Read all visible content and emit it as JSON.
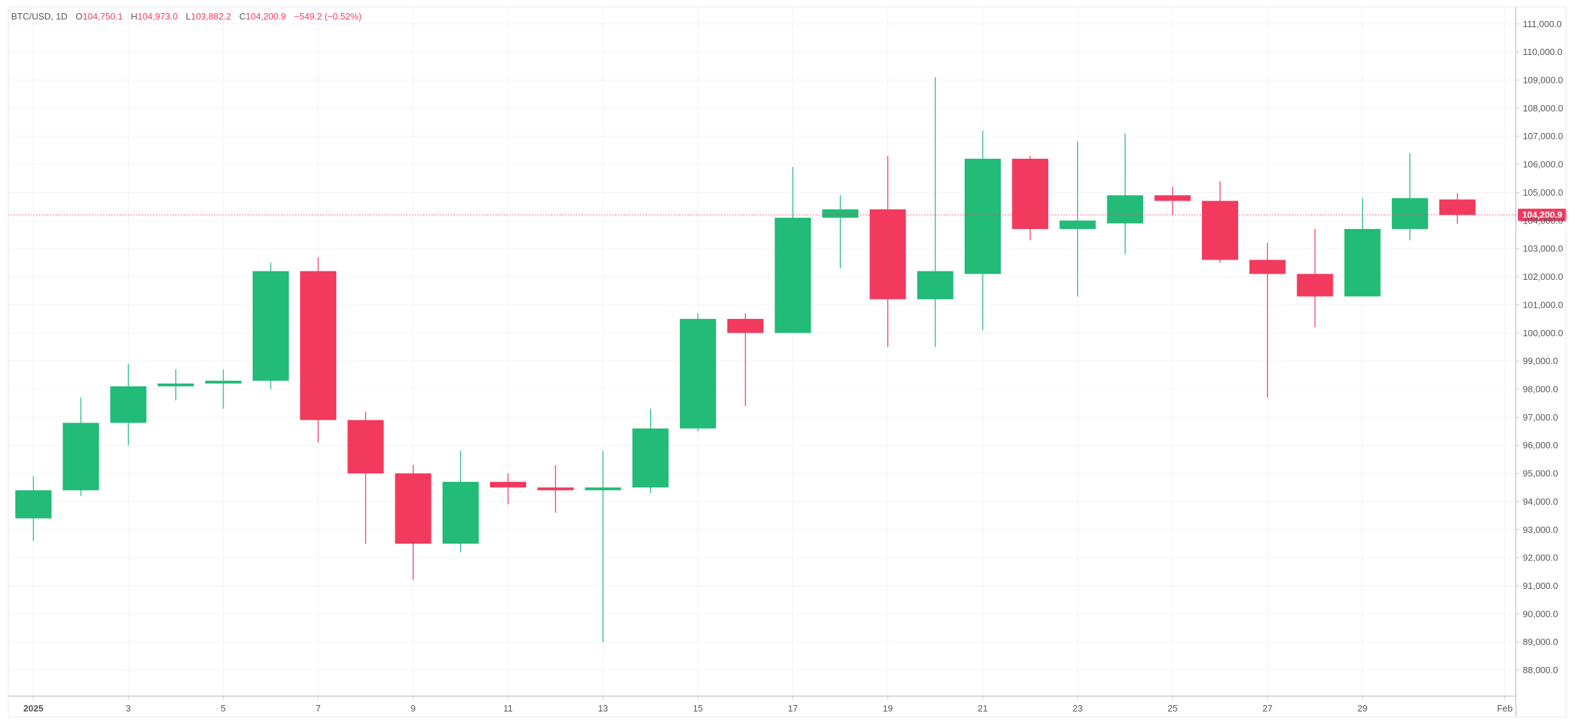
{
  "legend": {
    "symbol": "BTC/USD, 1D",
    "open_label": "O",
    "open_value": "104,750.1",
    "high_label": "H",
    "high_value": "104,973.0",
    "low_label": "L",
    "low_value": "103,882.2",
    "close_label": "C",
    "close_value": "104,200.9",
    "change": "−549.2 (−0.52%)"
  },
  "current_price_label": "104,200.9",
  "colors": {
    "up": "#22bb77",
    "down": "#f23a5e",
    "grid": "#f0f3f8",
    "axis_border": "#c8ccd4",
    "text": "#555555"
  },
  "chart_data": {
    "type": "candlestick",
    "symbol": "BTC/USD",
    "interval": "1D",
    "ylim": [
      87000,
      111500
    ],
    "y_ticks": [
      88000,
      89000,
      90000,
      91000,
      92000,
      93000,
      94000,
      95000,
      96000,
      97000,
      98000,
      99000,
      100000,
      101000,
      102000,
      103000,
      104000,
      105000,
      106000,
      107000,
      108000,
      109000,
      110000,
      111000
    ],
    "y_tick_labels": [
      "88,000.0",
      "89,000.0",
      "90,000.0",
      "91,000.0",
      "92,000.0",
      "93,000.0",
      "94,000.0",
      "95,000.0",
      "96,000.0",
      "97,000.0",
      "98,000.0",
      "99,000.0",
      "100,000.0",
      "101,000.0",
      "102,000.0",
      "103,000.0",
      "104,000.0",
      "105,000.0",
      "106,000.0",
      "107,000.0",
      "108,000.0",
      "109,000.0",
      "110,000.0",
      "111,000.0"
    ],
    "x_tick_labels": [
      {
        "day": 1,
        "label": "2025"
      },
      {
        "day": 3,
        "label": "3"
      },
      {
        "day": 5,
        "label": "5"
      },
      {
        "day": 7,
        "label": "7"
      },
      {
        "day": 9,
        "label": "9"
      },
      {
        "day": 11,
        "label": "11"
      },
      {
        "day": 13,
        "label": "13"
      },
      {
        "day": 15,
        "label": "15"
      },
      {
        "day": 17,
        "label": "17"
      },
      {
        "day": 19,
        "label": "19"
      },
      {
        "day": 21,
        "label": "21"
      },
      {
        "day": 23,
        "label": "23"
      },
      {
        "day": 25,
        "label": "25"
      },
      {
        "day": 27,
        "label": "27"
      },
      {
        "day": 29,
        "label": "29"
      },
      {
        "day": 32,
        "label": "Feb"
      }
    ],
    "grid": true,
    "current_price": 104200.9,
    "candles": [
      {
        "date": "2025-01-01",
        "day": 1,
        "open": 93400,
        "high": 94900,
        "low": 92600,
        "close": 94400
      },
      {
        "date": "2025-01-02",
        "day": 2,
        "open": 94400,
        "high": 97700,
        "low": 94200,
        "close": 96800
      },
      {
        "date": "2025-01-03",
        "day": 3,
        "open": 96800,
        "high": 98900,
        "low": 96000,
        "close": 98100
      },
      {
        "date": "2025-01-04",
        "day": 4,
        "open": 98100,
        "high": 98700,
        "low": 97600,
        "close": 98200
      },
      {
        "date": "2025-01-05",
        "day": 5,
        "open": 98200,
        "high": 98700,
        "low": 97300,
        "close": 98300
      },
      {
        "date": "2025-01-06",
        "day": 6,
        "open": 98300,
        "high": 102500,
        "low": 98000,
        "close": 102200
      },
      {
        "date": "2025-01-07",
        "day": 7,
        "open": 102200,
        "high": 102700,
        "low": 96100,
        "close": 96900
      },
      {
        "date": "2025-01-08",
        "day": 8,
        "open": 96900,
        "high": 97200,
        "low": 92500,
        "close": 95000
      },
      {
        "date": "2025-01-09",
        "day": 9,
        "open": 95000,
        "high": 95300,
        "low": 91200,
        "close": 92500
      },
      {
        "date": "2025-01-10",
        "day": 10,
        "open": 92500,
        "high": 95800,
        "low": 92200,
        "close": 94700
      },
      {
        "date": "2025-01-11",
        "day": 11,
        "open": 94700,
        "high": 95000,
        "low": 93900,
        "close": 94500
      },
      {
        "date": "2025-01-12",
        "day": 12,
        "open": 94500,
        "high": 95300,
        "low": 93600,
        "close": 94400
      },
      {
        "date": "2025-01-13",
        "day": 13,
        "open": 94400,
        "high": 95800,
        "low": 89000,
        "close": 94500
      },
      {
        "date": "2025-01-14",
        "day": 14,
        "open": 94500,
        "high": 97300,
        "low": 94300,
        "close": 96600
      },
      {
        "date": "2025-01-15",
        "day": 15,
        "open": 96600,
        "high": 100700,
        "low": 96500,
        "close": 100500
      },
      {
        "date": "2025-01-16",
        "day": 16,
        "open": 100500,
        "high": 100700,
        "low": 97400,
        "close": 100000
      },
      {
        "date": "2025-01-17",
        "day": 17,
        "open": 100000,
        "high": 105900,
        "low": 100000,
        "close": 104100
      },
      {
        "date": "2025-01-18",
        "day": 18,
        "open": 104100,
        "high": 104900,
        "low": 102300,
        "close": 104400
      },
      {
        "date": "2025-01-19",
        "day": 19,
        "open": 104400,
        "high": 106300,
        "low": 99500,
        "close": 101200
      },
      {
        "date": "2025-01-20",
        "day": 20,
        "open": 101200,
        "high": 109100,
        "low": 99500,
        "close": 102200
      },
      {
        "date": "2025-01-21",
        "day": 21,
        "open": 102100,
        "high": 107200,
        "low": 100100,
        "close": 106200
      },
      {
        "date": "2025-01-22",
        "day": 22,
        "open": 106200,
        "high": 106300,
        "low": 103300,
        "close": 103700
      },
      {
        "date": "2025-01-23",
        "day": 23,
        "open": 103700,
        "high": 106800,
        "low": 101300,
        "close": 104000
      },
      {
        "date": "2025-01-24",
        "day": 24,
        "open": 103900,
        "high": 107100,
        "low": 102800,
        "close": 104900
      },
      {
        "date": "2025-01-25",
        "day": 25,
        "open": 104900,
        "high": 105200,
        "low": 104200,
        "close": 104700
      },
      {
        "date": "2025-01-26",
        "day": 26,
        "open": 104700,
        "high": 105400,
        "low": 102500,
        "close": 102600
      },
      {
        "date": "2025-01-27",
        "day": 27,
        "open": 102600,
        "high": 103200,
        "low": 97700,
        "close": 102100
      },
      {
        "date": "2025-01-28",
        "day": 28,
        "open": 102100,
        "high": 103700,
        "low": 100200,
        "close": 101300
      },
      {
        "date": "2025-01-29",
        "day": 29,
        "open": 101300,
        "high": 104800,
        "low": 101300,
        "close": 103700
      },
      {
        "date": "2025-01-30",
        "day": 30,
        "open": 103700,
        "high": 106400,
        "low": 103300,
        "close": 104800
      },
      {
        "date": "2025-01-31",
        "day": 31,
        "open": 104750.1,
        "high": 104973.0,
        "low": 103882.2,
        "close": 104200.9
      }
    ]
  }
}
